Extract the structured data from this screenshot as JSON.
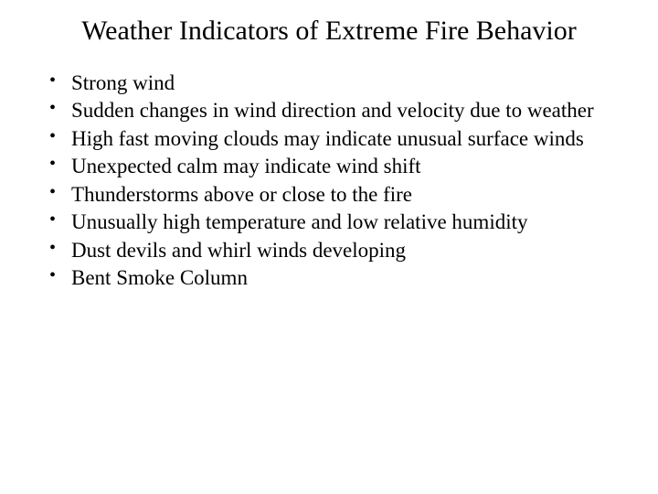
{
  "slide": {
    "title": "Weather Indicators of Extreme Fire Behavior",
    "bullets": [
      "Strong wind",
      "Sudden changes in wind direction and velocity due to weather",
      "High fast moving clouds may indicate unusual surface winds",
      "Unexpected calm may indicate wind shift",
      "Thunderstorms above or close to the fire",
      "Unusually high temperature and low relative humidity",
      "Dust devils and whirl winds developing",
      "Bent Smoke Column"
    ],
    "title_fontsize": 30,
    "bullet_fontsize": 23,
    "text_color": "#000000",
    "background_color": "#ffffff",
    "font_family": "Times New Roman"
  }
}
